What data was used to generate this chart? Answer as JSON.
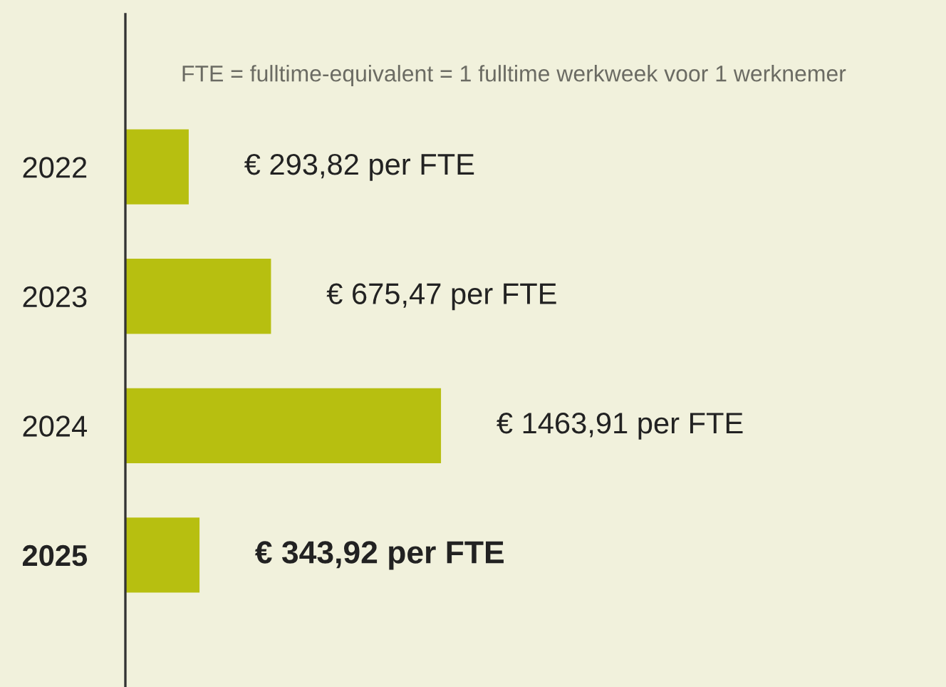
{
  "chart_data": {
    "type": "bar",
    "orientation": "horizontal",
    "categories": [
      "2022",
      "2023",
      "2024",
      "2025"
    ],
    "values": [
      293.82,
      675.47,
      1463.91,
      343.92
    ],
    "color": "#b7bf10",
    "value_labels": [
      "€ 293,82 per FTE",
      "€ 675,47 per FTE",
      "€ 1463,91 per FTE",
      "€ 343,92 per FTE"
    ],
    "annotations": [
      "FTE = fulltime-equivalent = 1 fulltime werkweek voor 1 werknemer"
    ]
  }
}
